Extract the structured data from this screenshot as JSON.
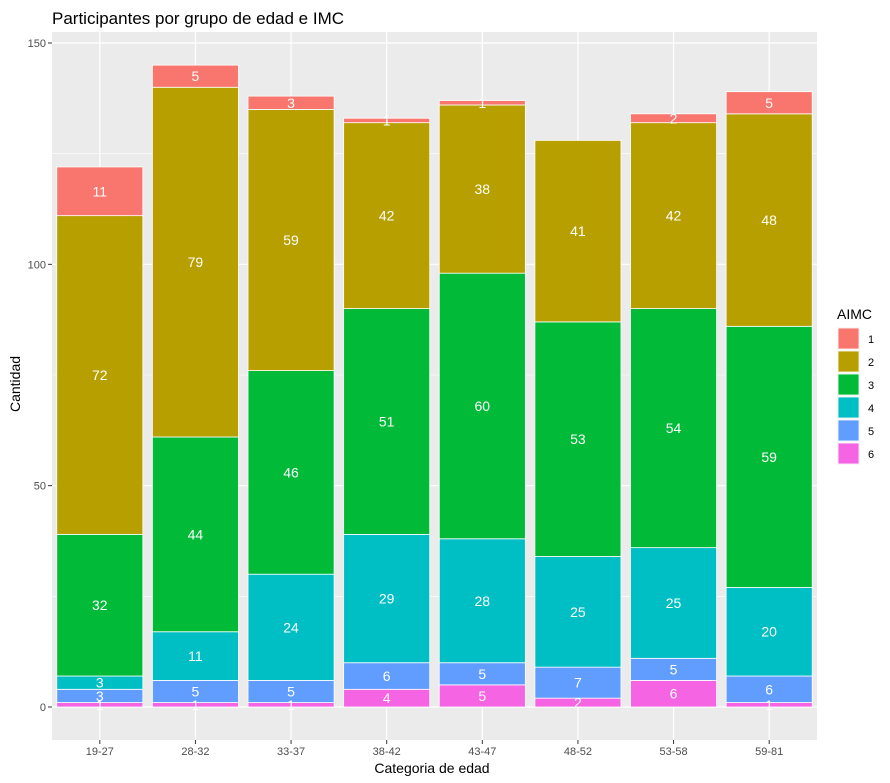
{
  "chart_data": {
    "type": "bar",
    "stacked": true,
    "title": "Participantes por grupo de edad e IMC",
    "xlabel": "Categoria de edad",
    "ylabel": "Cantidad",
    "categories": [
      "19-27",
      "28-32",
      "33-37",
      "38-42",
      "43-47",
      "48-52",
      "53-58",
      "59-81"
    ],
    "ylim": [
      -7.5,
      150
    ],
    "yticks": [
      0,
      50,
      100,
      150
    ],
    "legend_title": "AIMC",
    "legend_position": "right",
    "grid": true,
    "series": [
      {
        "name": "1",
        "color": "#F8766D",
        "values": [
          11,
          5,
          3,
          1,
          1,
          0,
          2,
          5
        ]
      },
      {
        "name": "2",
        "color": "#B79F00",
        "values": [
          72,
          79,
          59,
          42,
          38,
          41,
          42,
          48
        ]
      },
      {
        "name": "3",
        "color": "#00BA38",
        "values": [
          32,
          44,
          46,
          51,
          60,
          53,
          54,
          59
        ]
      },
      {
        "name": "4",
        "color": "#00BFC4",
        "values": [
          3,
          11,
          24,
          29,
          28,
          25,
          25,
          20
        ]
      },
      {
        "name": "5",
        "color": "#619CFF",
        "values": [
          3,
          5,
          5,
          6,
          5,
          7,
          5,
          6
        ]
      },
      {
        "name": "6",
        "color": "#F564E3",
        "values": [
          1,
          1,
          1,
          4,
          5,
          2,
          6,
          1
        ]
      }
    ]
  }
}
